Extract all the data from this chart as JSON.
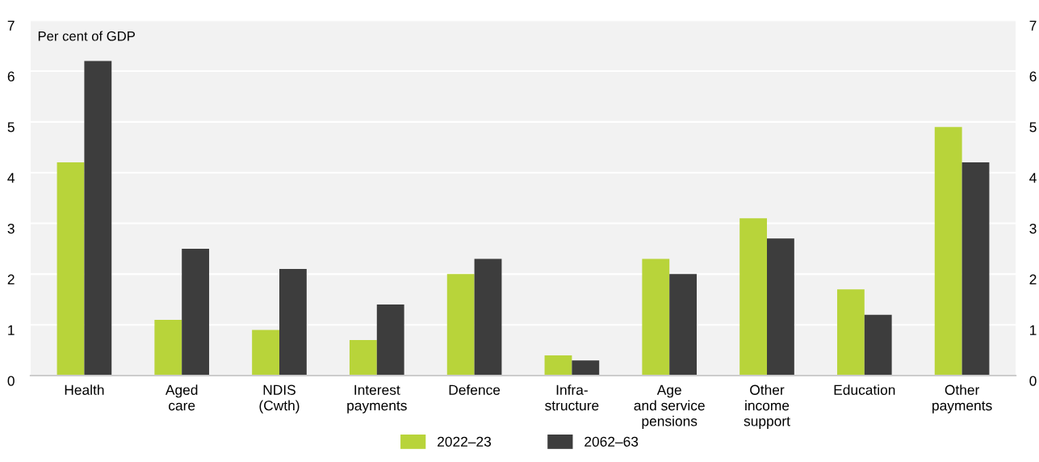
{
  "chart_data": {
    "type": "bar",
    "ylabel": "Per cent of GDP",
    "categories": [
      "Health",
      "Aged\ncare",
      "NDIS\n(Cwth)",
      "Interest\npayments",
      "Defence",
      "Infra-\nstructure",
      "Age\nand service\npensions",
      "Other\nincome\nsupport",
      "Education",
      "Other\npayments"
    ],
    "series": [
      {
        "name": "2022–23",
        "color": "#b8d43a",
        "values": [
          4.2,
          1.1,
          0.9,
          0.7,
          2.0,
          0.4,
          2.3,
          3.1,
          1.7,
          4.9
        ]
      },
      {
        "name": "2062–63",
        "color": "#3d3d3d",
        "values": [
          6.2,
          2.5,
          2.1,
          1.4,
          2.3,
          0.3,
          2.0,
          2.7,
          1.2,
          4.2
        ]
      }
    ],
    "ylim": [
      0,
      7
    ],
    "yticks": [
      0,
      1,
      2,
      3,
      4,
      5,
      6,
      7
    ],
    "y2lim": [
      0,
      7
    ],
    "y2ticks": [
      0,
      1,
      2,
      3,
      4,
      5,
      6,
      7
    ],
    "grid": "y",
    "legend": "bottom"
  }
}
